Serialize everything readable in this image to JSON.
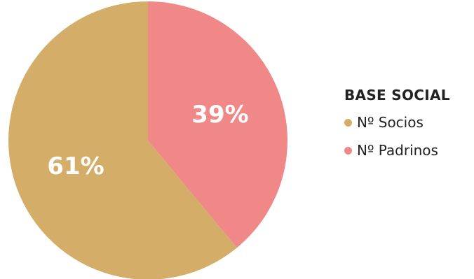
{
  "chart_data": {
    "type": "pie",
    "title": "BASE SOCIAL",
    "legend_position": "right",
    "slices": [
      {
        "name": "Nº Socios",
        "value": 61,
        "label": "61%",
        "color": "#D4AD69"
      },
      {
        "name": "Nº Padrinos",
        "value": 39,
        "label": "39%",
        "color": "#F08888"
      }
    ]
  }
}
